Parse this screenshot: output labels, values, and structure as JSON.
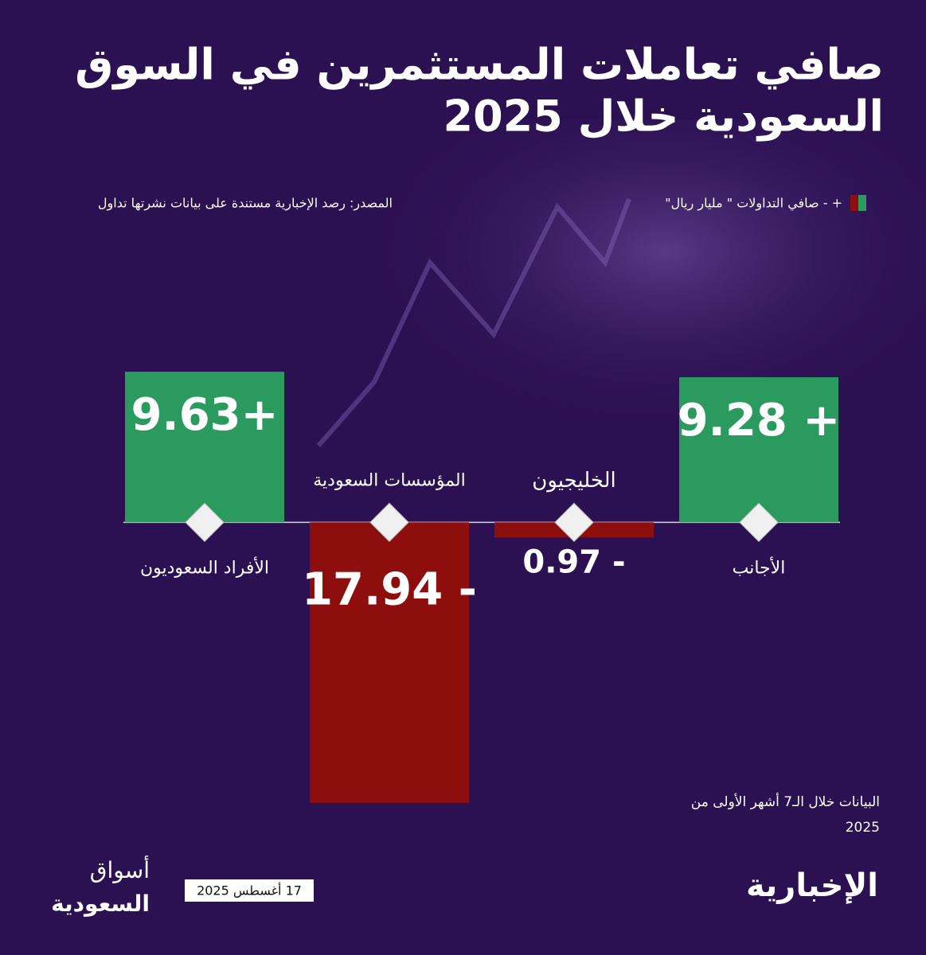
{
  "chart_data": {
    "type": "bar",
    "title_lines": [
      "صافي تعاملات المستثمرين في السوق",
      "السعودية خلال 2025"
    ],
    "source": "المصدر: رصد الإخبارية مستندة على بيانات نشرتها تداول",
    "legend_text": "+ - صافي التداولات \" مليار ريال\"",
    "categories": [
      "الأجانب",
      "الخليجيون",
      "المؤسسات السعودية",
      "الأفراد السعوديون"
    ],
    "values": [
      9.28,
      -0.97,
      -17.94,
      9.63
    ],
    "value_labels": [
      "9.28 +",
      "0.97 -",
      "17.94 -",
      "9.63+"
    ],
    "positive_color": "#2a9a5e",
    "negative_color": "#8e0e0e",
    "ylim": [
      -18,
      10.5
    ],
    "note_lines": [
      "البيانات خلال الـ7 أشهر الأولى من",
      "2025"
    ]
  },
  "footer": {
    "date": "17 أغسطس 2025",
    "brand": "الإخبارية",
    "brand2_lines": [
      "أسواق",
      "السعودية"
    ]
  }
}
